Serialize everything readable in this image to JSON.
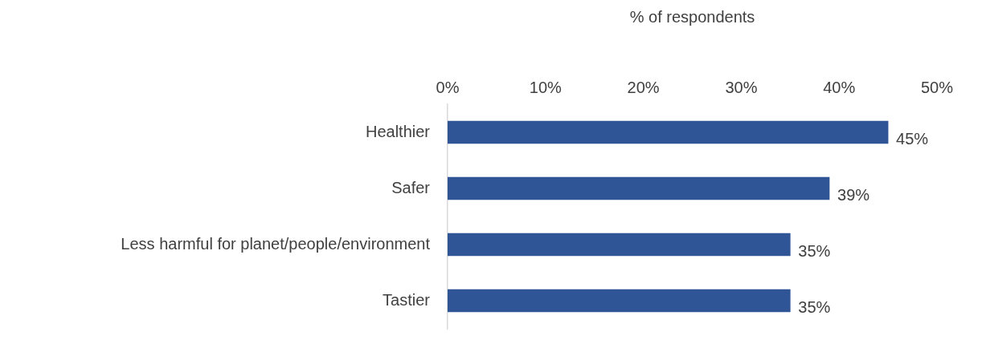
{
  "chart_data": {
    "type": "bar",
    "orientation": "horizontal",
    "xlabel": "% of respondents",
    "categories": [
      "Healthier",
      "Safer",
      "Less harmful for planet/people/environment",
      "Tastier"
    ],
    "values": [
      45,
      39,
      35,
      35
    ],
    "color": "#2f5597",
    "value_labels": [
      "45%",
      "39%",
      "35%",
      "35%"
    ],
    "xlim": [
      0,
      50
    ],
    "xticks": [
      {
        "value": 0,
        "label": "0%"
      },
      {
        "value": 10,
        "label": "10%"
      },
      {
        "value": 20,
        "label": "20%"
      },
      {
        "value": 30,
        "label": "30%"
      },
      {
        "value": 40,
        "label": "40%"
      },
      {
        "value": 50,
        "label": "50%"
      }
    ],
    "grid": false,
    "legend": false
  }
}
